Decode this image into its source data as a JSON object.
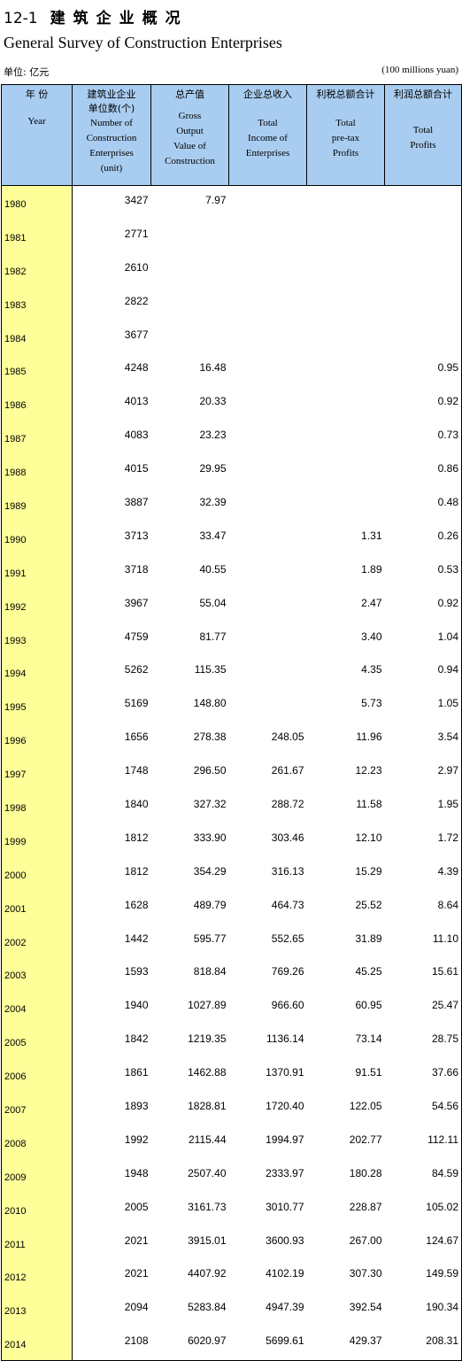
{
  "header": {
    "table_no": "12-1",
    "title_cn": "建筑企业概况",
    "title_en": "General Survey of Construction Enterprises",
    "unit_cn": "单位: 亿元",
    "unit_en": "(100 millions yuan)"
  },
  "columns": [
    {
      "cn": "年 份",
      "en": [
        "Year"
      ]
    },
    {
      "cn": "建筑业企业\n单位数(个)",
      "en": [
        "Number of",
        "Construction",
        "Enterprises",
        "(unit)"
      ]
    },
    {
      "cn": "总产值",
      "en": [
        "Gross",
        "Output",
        "Value of",
        "Construction"
      ]
    },
    {
      "cn": "企业总收入",
      "en": [
        "Total",
        "Income of",
        "Enterprises"
      ]
    },
    {
      "cn": "利税总额合计",
      "en": [
        "Total",
        "pre-tax",
        "Profits"
      ]
    },
    {
      "cn": "利润总额合计",
      "en": [
        "Total",
        "Profits"
      ]
    }
  ],
  "rows": [
    [
      "1980",
      "3427",
      "7.97",
      "",
      "",
      ""
    ],
    [
      "1981",
      "2771",
      "",
      "",
      "",
      ""
    ],
    [
      "1982",
      "2610",
      "",
      "",
      "",
      ""
    ],
    [
      "1983",
      "2822",
      "",
      "",
      "",
      ""
    ],
    [
      "1984",
      "3677",
      "",
      "",
      "",
      ""
    ],
    [
      "1985",
      "4248",
      "16.48",
      "",
      "",
      "0.95"
    ],
    [
      "1986",
      "4013",
      "20.33",
      "",
      "",
      "0.92"
    ],
    [
      "1987",
      "4083",
      "23.23",
      "",
      "",
      "0.73"
    ],
    [
      "1988",
      "4015",
      "29.95",
      "",
      "",
      "0.86"
    ],
    [
      "1989",
      "3887",
      "32.39",
      "",
      "",
      "0.48"
    ],
    [
      "1990",
      "3713",
      "33.47",
      "",
      "1.31",
      "0.26"
    ],
    [
      "1991",
      "3718",
      "40.55",
      "",
      "1.89",
      "0.53"
    ],
    [
      "1992",
      "3967",
      "55.04",
      "",
      "2.47",
      "0.92"
    ],
    [
      "1993",
      "4759",
      "81.77",
      "",
      "3.40",
      "1.04"
    ],
    [
      "1994",
      "5262",
      "115.35",
      "",
      "4.35",
      "0.94"
    ],
    [
      "1995",
      "5169",
      "148.80",
      "",
      "5.73",
      "1.05"
    ],
    [
      "1996",
      "1656",
      "278.38",
      "248.05",
      "11.96",
      "3.54"
    ],
    [
      "1997",
      "1748",
      "296.50",
      "261.67",
      "12.23",
      "2.97"
    ],
    [
      "1998",
      "1840",
      "327.32",
      "288.72",
      "11.58",
      "1.95"
    ],
    [
      "1999",
      "1812",
      "333.90",
      "303.46",
      "12.10",
      "1.72"
    ],
    [
      "2000",
      "1812",
      "354.29",
      "316.13",
      "15.29",
      "4.39"
    ],
    [
      "2001",
      "1628",
      "489.79",
      "464.73",
      "25.52",
      "8.64"
    ],
    [
      "2002",
      "1442",
      "595.77",
      "552.65",
      "31.89",
      "11.10"
    ],
    [
      "2003",
      "1593",
      "818.84",
      "769.26",
      "45.25",
      "15.61"
    ],
    [
      "2004",
      "1940",
      "1027.89",
      "966.60",
      "60.95",
      "25.47"
    ],
    [
      "2005",
      "1842",
      "1219.35",
      "1136.14",
      "73.14",
      "28.75"
    ],
    [
      "2006",
      "1861",
      "1462.88",
      "1370.91",
      "91.51",
      "37.66"
    ],
    [
      "2007",
      "1893",
      "1828.81",
      "1720.40",
      "122.05",
      "54.56"
    ],
    [
      "2008",
      "1992",
      "2115.44",
      "1994.97",
      "202.77",
      "112.11"
    ],
    [
      "2009",
      "1948",
      "2507.40",
      "2333.97",
      "180.28",
      "84.59"
    ],
    [
      "2010",
      "2005",
      "3161.73",
      "3010.77",
      "228.87",
      "105.02"
    ],
    [
      "2011",
      "2021",
      "3915.01",
      "3600.93",
      "267.00",
      "124.67"
    ],
    [
      "2012",
      "2021",
      "4407.92",
      "4102.19",
      "307.30",
      "149.59"
    ],
    [
      "2013",
      "2094",
      "5283.84",
      "4947.39",
      "392.54",
      "190.34"
    ],
    [
      "2014",
      "2108",
      "6020.97",
      "5699.61",
      "429.37",
      "208.31"
    ]
  ]
}
